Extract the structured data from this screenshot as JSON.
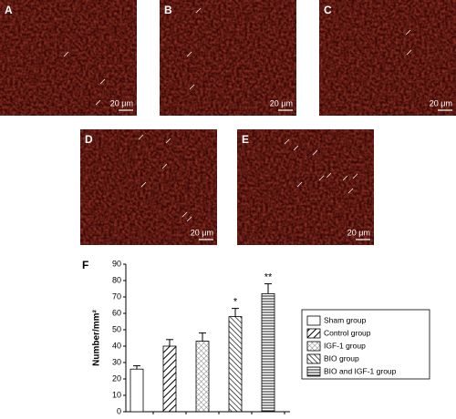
{
  "panels": [
    {
      "label": "A",
      "scale": "20 μm"
    },
    {
      "label": "B",
      "scale": "20 μm"
    },
    {
      "label": "C",
      "scale": "20 μm"
    },
    {
      "label": "D",
      "scale": "20 μm"
    },
    {
      "label": "E",
      "scale": "20 μm"
    }
  ],
  "chart_data": {
    "type": "bar",
    "panel_label": "F",
    "y_label": "Number/mm²",
    "categories": [
      "Sham group",
      "Control group",
      "IGF-1 group",
      "BIO group",
      "BIO and IGF-1 group"
    ],
    "values": [
      26,
      40,
      43,
      58,
      72
    ],
    "errors": [
      2,
      4,
      5,
      5,
      6
    ],
    "value_annotations": [
      null,
      null,
      null,
      "*",
      "**"
    ],
    "fills": [
      "plain",
      "diagonal",
      "cross",
      "backslash",
      "horizontal"
    ],
    "color": "#000000",
    "ylim": [
      0,
      90
    ],
    "yticks": [
      0,
      10,
      20,
      30,
      40,
      50,
      60,
      70,
      80,
      90
    ]
  }
}
